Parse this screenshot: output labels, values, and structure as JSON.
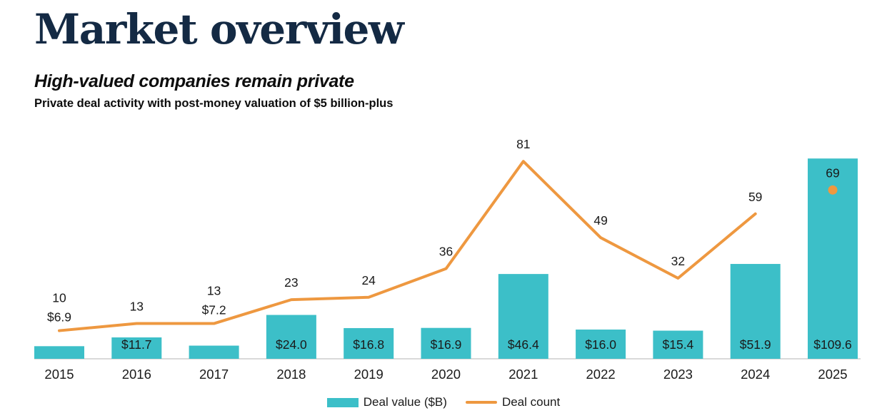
{
  "header": {
    "title": "Market overview",
    "subtitle": "High-valued companies remain private",
    "description": "Private deal activity with post-money valuation of $5 billion-plus"
  },
  "legend": {
    "bar_label": "Deal value ($B)",
    "line_label": "Deal count"
  },
  "colors": {
    "bar": "#3CBFC8",
    "line": "#EE9840",
    "title": "#142A44",
    "label_text": "#1a1a1a",
    "axis": "#D9D9D9"
  },
  "chart_data": {
    "type": "bar",
    "subtype": "bar+line combo",
    "title": "High-valued companies remain private",
    "subtitle": "Private deal activity with post-money valuation of $5 billion-plus",
    "categories": [
      "2015",
      "2016",
      "2017",
      "2018",
      "2019",
      "2020",
      "2021",
      "2022",
      "2023",
      "2024",
      "2025"
    ],
    "series": [
      {
        "name": "Deal value ($B)",
        "type": "bar",
        "values": [
          6.9,
          11.7,
          7.2,
          24.0,
          16.8,
          16.9,
          46.4,
          16.0,
          15.4,
          51.9,
          109.6
        ],
        "labels": [
          "$6.9",
          "$11.7",
          "$7.2",
          "$24.0",
          "$16.8",
          "$16.9",
          "$46.4",
          "$16.0",
          "$15.4",
          "$51.9",
          "$109.6"
        ],
        "color": "#3CBFC8"
      },
      {
        "name": "Deal count",
        "type": "line",
        "values": [
          10,
          13,
          13,
          23,
          24,
          36,
          81,
          49,
          32,
          59,
          69
        ],
        "labels": [
          "10",
          "13",
          "13",
          "23",
          "24",
          "36",
          "81",
          "49",
          "32",
          "59",
          "69"
        ],
        "color": "#EE9840",
        "detached_last_point": true
      }
    ],
    "value_axis_range": [
      0,
      125
    ],
    "count_axis_range": [
      0,
      93
    ],
    "grid": false,
    "y_axis_visible": false,
    "data_labels_visible": true,
    "legend_position": "bottom-center"
  }
}
